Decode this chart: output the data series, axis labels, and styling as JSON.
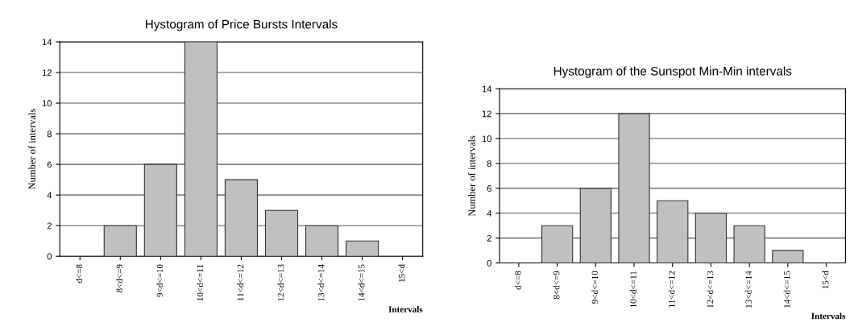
{
  "chart_data": [
    {
      "type": "bar",
      "title": "Hystogram of Price Bursts Intervals",
      "xlabel": "Intervals",
      "ylabel": "Number of intervals",
      "categories": [
        "d<=8",
        "8<d<=9",
        "9<d<=10",
        "10<d<=11",
        "11<d<=12",
        "12<d<=13",
        "13<d<=14",
        "14<d<=15",
        "15<d"
      ],
      "values": [
        0,
        2,
        6,
        14,
        5,
        3,
        2,
        1,
        0
      ],
      "color": "#c0c0c0",
      "ylim": [
        0,
        14
      ],
      "yticks": [
        0,
        2,
        4,
        6,
        8,
        10,
        12,
        14
      ],
      "grid": "y",
      "data_labels": false
    },
    {
      "type": "bar",
      "title": "Hystogram of the Sunspot Min-Min intervals",
      "xlabel": "Intervals",
      "ylabel": "Number of intervals",
      "categories": [
        "d<=8",
        "8<d<=9",
        "9<d<=10",
        "10<d<=11",
        "11<d<=12",
        "12<d<=13",
        "13<d<=14",
        "14<d<=15",
        "15<d"
      ],
      "values": [
        0,
        3,
        6,
        12,
        5,
        4,
        3,
        1,
        0
      ],
      "color": "#c0c0c0",
      "ylim": [
        0,
        14
      ],
      "yticks": [
        0,
        2,
        4,
        6,
        8,
        10,
        12,
        14
      ],
      "grid": "y"
    }
  ]
}
